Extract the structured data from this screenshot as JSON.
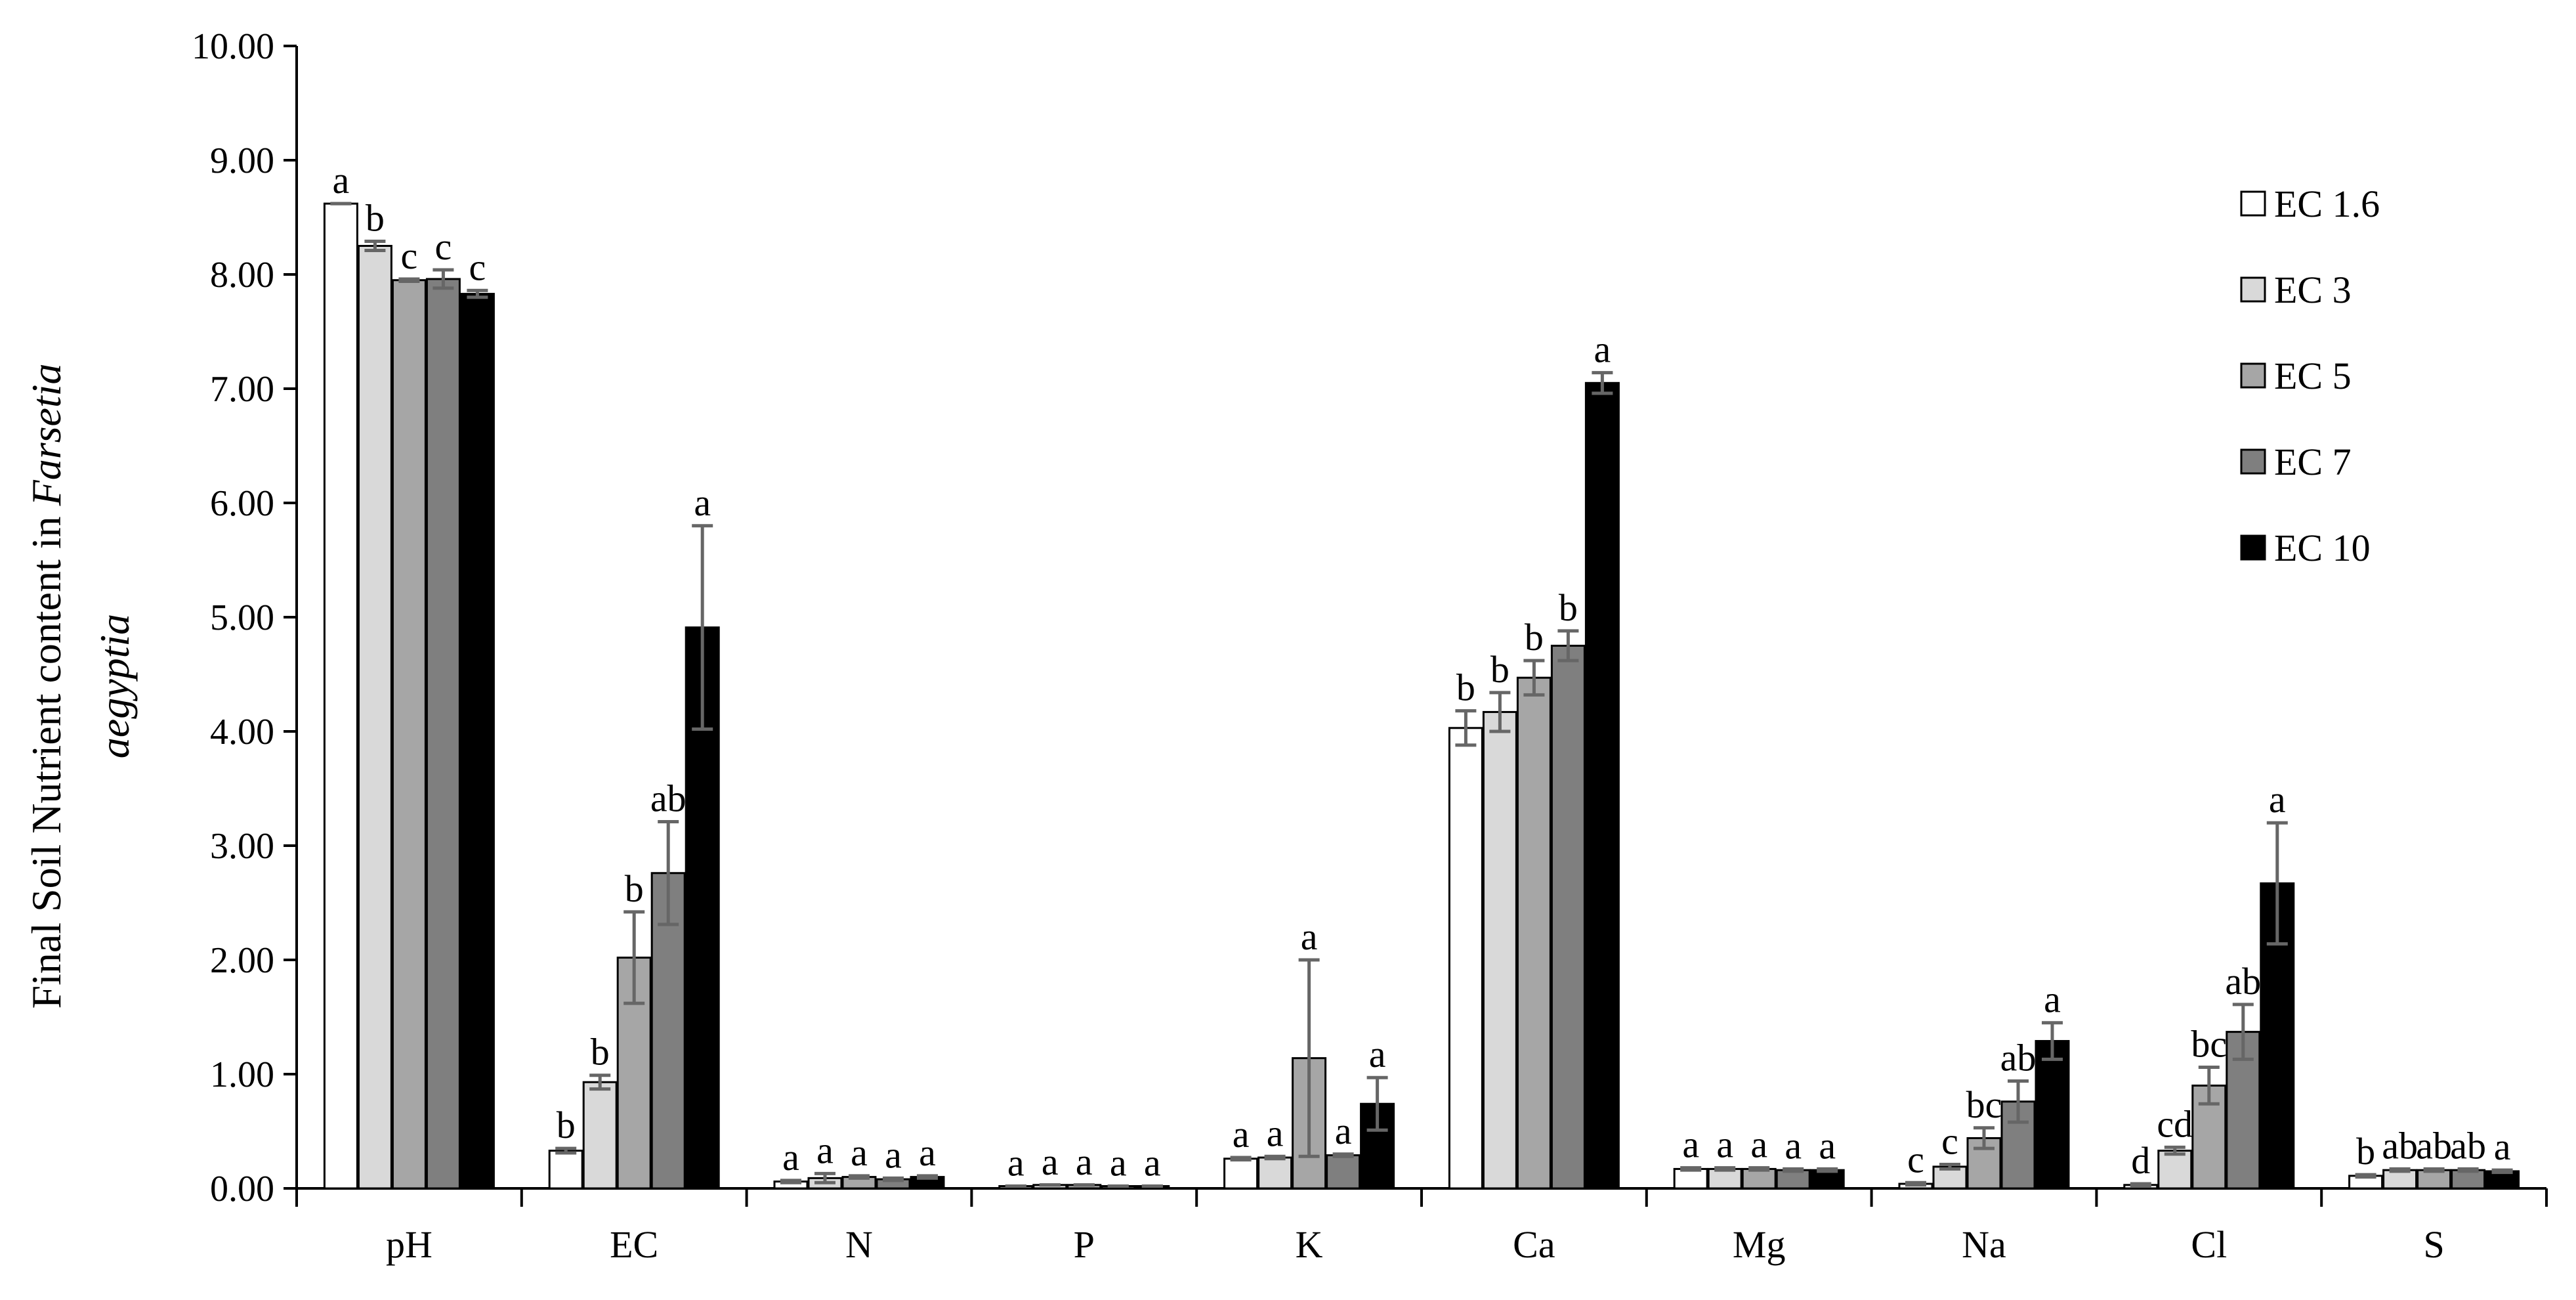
{
  "chart_data": {
    "type": "bar",
    "title": "",
    "ylabel": {
      "line1": "Final Soil Nutrient content  in ",
      "line1_italic": "Farsetia",
      "line2_italic": "aegyptia"
    },
    "xlabel": "",
    "ylim": [
      0,
      10
    ],
    "yticks": [
      0,
      1,
      2,
      3,
      4,
      5,
      6,
      7,
      8,
      9,
      10
    ],
    "ytick_labels": [
      "0.00",
      "1.00",
      "2.00",
      "3.00",
      "4.00",
      "5.00",
      "6.00",
      "7.00",
      "8.00",
      "9.00",
      "10.00"
    ],
    "grid": false,
    "legend_position": "right",
    "categories": [
      "pH",
      "EC",
      "N",
      "P",
      "K",
      "Ca",
      "Mg",
      "Na",
      "Cl",
      "S"
    ],
    "series": [
      {
        "name": "EC 1.6",
        "color": "#ffffff",
        "values": [
          8.62,
          0.33,
          0.06,
          0.02,
          0.26,
          4.03,
          0.17,
          0.04,
          0.03,
          0.11
        ],
        "errors": [
          0.0,
          0.02,
          0.01,
          0.0,
          0.01,
          0.15,
          0.01,
          0.01,
          0.01,
          0.01
        ],
        "labels": [
          "a",
          "b",
          "a",
          "a",
          "a",
          "b",
          "a",
          "c",
          "d",
          "b"
        ]
      },
      {
        "name": "EC 3",
        "color": "#d9d9d9",
        "values": [
          8.25,
          0.93,
          0.09,
          0.03,
          0.27,
          4.17,
          0.17,
          0.19,
          0.33,
          0.16
        ],
        "errors": [
          0.04,
          0.06,
          0.04,
          0.0,
          0.01,
          0.17,
          0.01,
          0.02,
          0.03,
          0.01
        ],
        "labels": [
          "b",
          "b",
          "a",
          "a",
          "a",
          "b",
          "a",
          "c",
          "cd",
          "ab"
        ]
      },
      {
        "name": "EC 5",
        "color": "#a6a6a6",
        "values": [
          7.95,
          2.02,
          0.1,
          0.03,
          1.14,
          4.47,
          0.17,
          0.44,
          0.9,
          0.16
        ],
        "errors": [
          0.01,
          0.4,
          0.01,
          0.0,
          0.86,
          0.15,
          0.01,
          0.09,
          0.16,
          0.01
        ],
        "labels": [
          "c",
          "b",
          "a",
          "a",
          "a",
          "b",
          "a",
          "bc",
          "bc",
          "ab"
        ]
      },
      {
        "name": "EC 7",
        "color": "#7f7f7f",
        "values": [
          7.96,
          2.76,
          0.08,
          0.02,
          0.29,
          4.75,
          0.16,
          0.76,
          1.37,
          0.16
        ],
        "errors": [
          0.08,
          0.45,
          0.01,
          0.0,
          0.01,
          0.13,
          0.01,
          0.18,
          0.24,
          0.01
        ],
        "labels": [
          "c",
          "ab",
          "a",
          "a",
          "a",
          "b",
          "a",
          "ab",
          "ab",
          "ab"
        ]
      },
      {
        "name": "EC 10",
        "color": "#000000",
        "values": [
          7.83,
          4.91,
          0.1,
          0.02,
          0.74,
          7.05,
          0.16,
          1.29,
          2.67,
          0.15
        ],
        "errors": [
          0.03,
          0.89,
          0.01,
          0.0,
          0.23,
          0.09,
          0.01,
          0.16,
          0.53,
          0.01
        ],
        "labels": [
          "c",
          "a",
          "a",
          "a",
          "a",
          "a",
          "a",
          "a",
          "a",
          "a"
        ]
      }
    ]
  }
}
